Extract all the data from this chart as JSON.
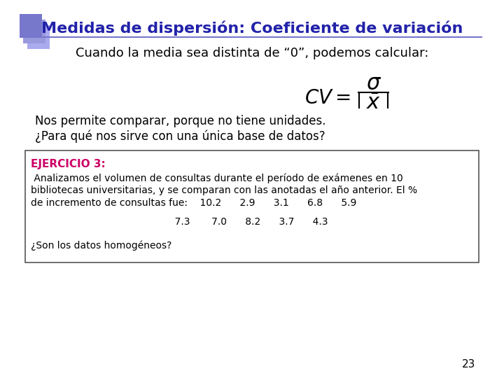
{
  "title": "Medidas de dispersión: Coeficiente de variación",
  "title_color": "#2222AA",
  "bg_color": "#FFFFFF",
  "subtitle": "Cuando la media sea distinta de “0”, podemos calcular:",
  "text1": "Nos permite comparar, porque no tiene unidades.",
  "text2": "¿Para qué nos sirve con una única base de datos?",
  "ejercicio_label": "EJERCICIO 3:",
  "ejercicio_color": "#CC0066",
  "ejercicio_text1": " Analizamos el volumen de consultas durante el período de exámenes en 10",
  "ejercicio_text2": "bibliotecas universitarias, y se comparan con las anotadas el año anterior. El %",
  "ejercicio_text3": "de incremento de consultas fue:    10.2      2.9      3.1      6.8      5.9",
  "ejercicio_text4": "                                               7.3       7.0      8.2      3.7      4.3",
  "ejercicio_text5": "¿Son los datos homogéneos?",
  "page_number": "23",
  "decorator_colors": [
    "#7777CC",
    "#9999DD",
    "#AAAAEE"
  ],
  "line_color": "#7777CC"
}
